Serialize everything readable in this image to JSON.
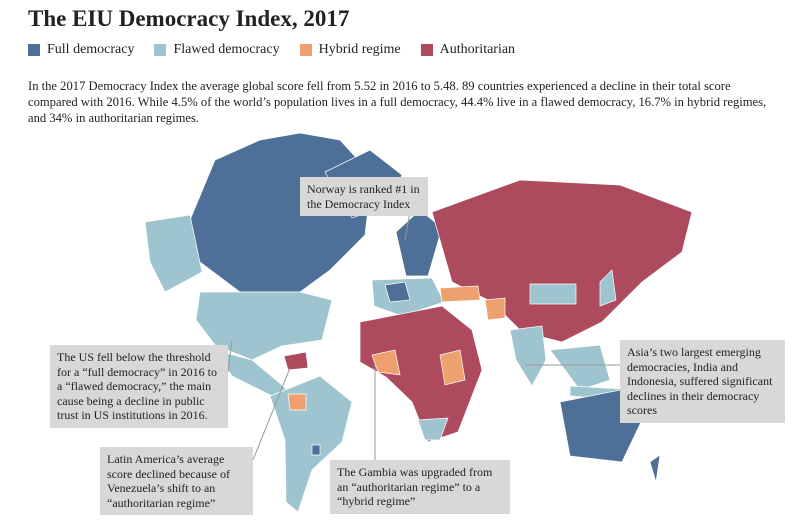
{
  "header": {
    "title": "The EIU Democracy Index, 2017"
  },
  "legend": [
    {
      "label": "Full democracy",
      "color": "#4d6f98"
    },
    {
      "label": "Flawed democracy",
      "color": "#9ec4d0"
    },
    {
      "label": "Hybrid regime",
      "color": "#eea06e"
    },
    {
      "label": "Authoritarian",
      "color": "#ad4a5e"
    }
  ],
  "summary": "In the 2017 Democracy Index the average global score fell from 5.52 in 2016 to 5.48. 89 countries experienced a decline in their total score compared with 2016. While 4.5% of the world’s population lives in a full democracy, 44.4% live in a flawed democracy, 16.7% in hybrid regimes, and 34% in authoritarian regimes.",
  "annotations": [
    {
      "text": "Norway is ranked #1 in the Democracy Index"
    },
    {
      "text": "The US fell below the threshold for a “full democracy” in 2016 to a “flawed democracy,” the main cause being a decline in public trust in US institutions in 2016."
    },
    {
      "text": "Asia’s two largest emerging democracies, India and Indonesia, suffered significant declines in their democracy scores"
    },
    {
      "text": "Latin America’s average score declined because of Venezuela’s shift to an “authoritarian regime”"
    },
    {
      "text": "The Gambia was upgraded from an “authoritarian regime” to a “hybrid regime”"
    }
  ]
}
